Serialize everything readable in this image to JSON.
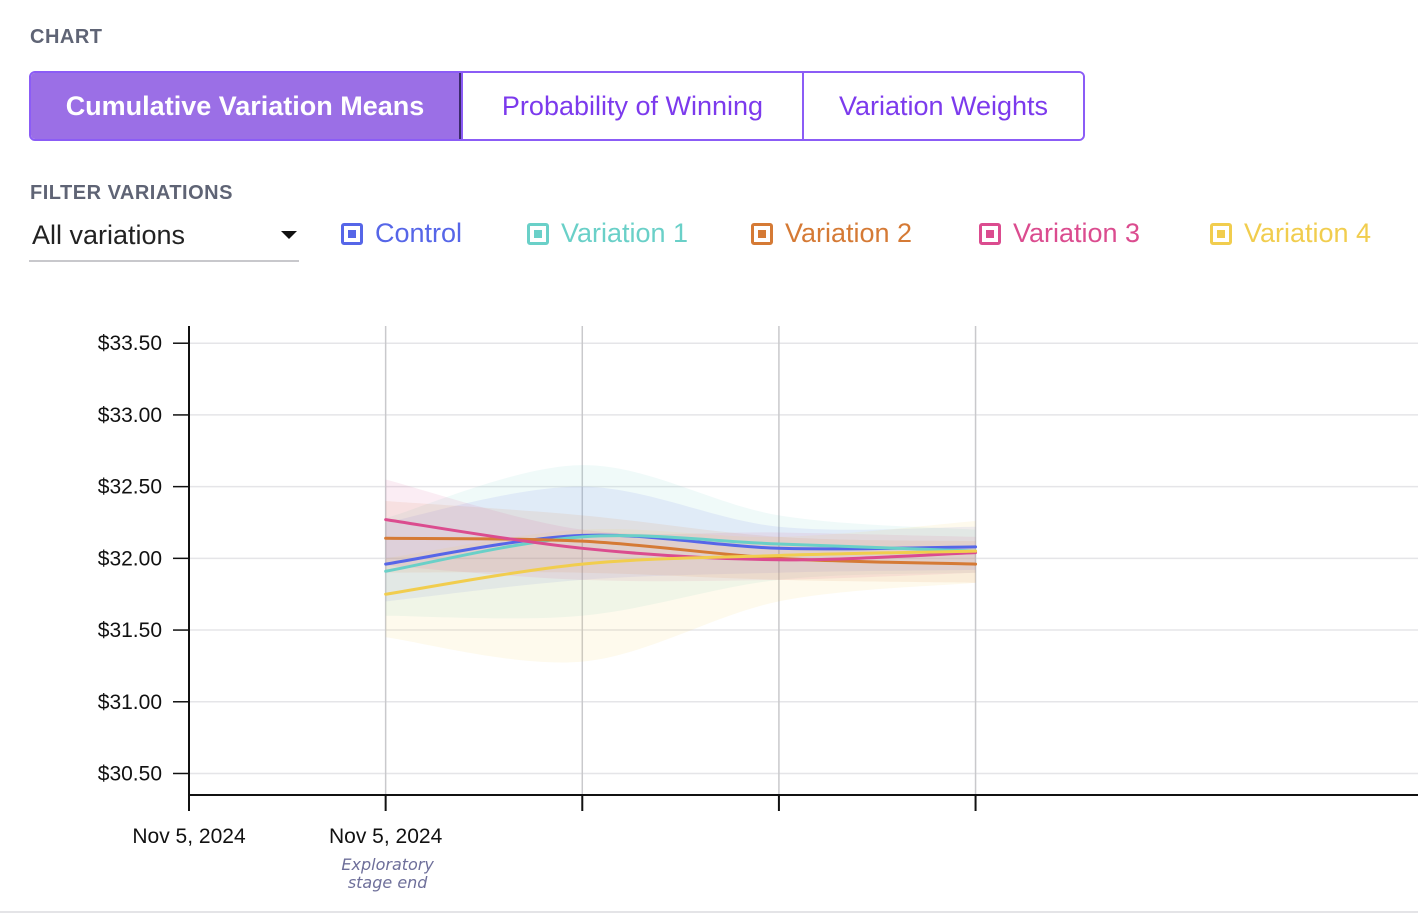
{
  "chart_section": {
    "label": "CHART",
    "tabs": [
      {
        "label": "Cumulative Variation Means",
        "active": true
      },
      {
        "label": "Probability of Winning",
        "active": false
      },
      {
        "label": "Variation Weights",
        "active": false
      }
    ]
  },
  "filter": {
    "label": "FILTER VARIATIONS",
    "selected": "All variations"
  },
  "legend": [
    {
      "name": "Control",
      "color": "#5666e8"
    },
    {
      "name": "Variation 1",
      "color": "#6ad0c8"
    },
    {
      "name": "Variation 2",
      "color": "#d57a35"
    },
    {
      "name": "Variation 3",
      "color": "#db4c8f"
    },
    {
      "name": "Variation 4",
      "color": "#f1cd4e"
    }
  ],
  "chart_data": {
    "type": "line",
    "title": "",
    "xlabel": "",
    "ylabel": "",
    "ylim": [
      30.35,
      33.62
    ],
    "yticks": [
      30.5,
      31.0,
      31.5,
      32.0,
      32.5,
      33.0,
      33.5
    ],
    "ytick_labels": [
      "$30.50",
      "$31.00",
      "$31.50",
      "$32.00",
      "$32.50",
      "$33.00",
      "$33.50"
    ],
    "x": [
      1,
      2,
      3,
      4
    ],
    "xlim": [
      0,
      6.25
    ],
    "vertical_gridlines_at": [
      1,
      2,
      3,
      4
    ],
    "xticks": [
      {
        "x": 0,
        "label": "Nov 5, 2024"
      },
      {
        "x": 1,
        "label": "Nov 5, 2024",
        "annotation": "Exploratory\nstage end"
      },
      {
        "x": 2,
        "label": ""
      },
      {
        "x": 3,
        "label": ""
      },
      {
        "x": 4,
        "label": ""
      }
    ],
    "series": [
      {
        "name": "Control",
        "color": "#5666e8",
        "values": [
          31.96,
          32.16,
          32.07,
          32.08
        ],
        "lower": [
          31.7,
          31.85,
          31.9,
          31.92
        ],
        "upper": [
          32.25,
          32.5,
          32.22,
          32.22
        ]
      },
      {
        "name": "Variation 1",
        "color": "#6ad0c8",
        "values": [
          31.91,
          32.15,
          32.1,
          32.05
        ],
        "lower": [
          31.6,
          31.6,
          31.85,
          31.9
        ],
        "upper": [
          32.28,
          32.65,
          32.3,
          32.2
        ]
      },
      {
        "name": "Variation 2",
        "color": "#d57a35",
        "values": [
          32.14,
          32.12,
          32.0,
          31.96
        ],
        "lower": [
          31.9,
          31.9,
          31.85,
          31.83
        ],
        "upper": [
          32.4,
          32.3,
          32.15,
          32.12
        ]
      },
      {
        "name": "Variation 3",
        "color": "#db4c8f",
        "values": [
          32.27,
          32.07,
          31.99,
          32.04
        ],
        "lower": [
          31.95,
          31.85,
          31.85,
          31.9
        ],
        "upper": [
          32.55,
          32.2,
          32.18,
          32.15
        ]
      },
      {
        "name": "Variation 4",
        "color": "#f1cd4e",
        "values": [
          31.75,
          31.96,
          32.02,
          32.05
        ],
        "lower": [
          31.45,
          31.28,
          31.7,
          31.83
        ],
        "upper": [
          32.0,
          32.2,
          32.15,
          32.26
        ]
      }
    ]
  }
}
